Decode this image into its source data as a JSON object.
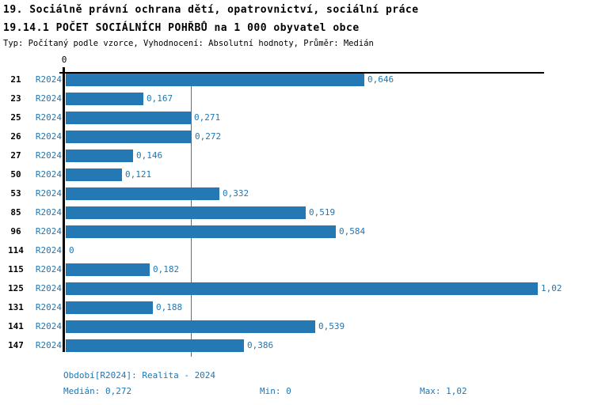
{
  "header": {
    "title_line1": "19. Sociálně právní ochrana dětí, opatrovnictví, sociální práce",
    "title_line2": "19.14.1 POČET SOCIÁLNÍCH POHŘBŮ na 1 000 obyvatel obce",
    "subtitle": "Typ: Počítaný podle vzorce, Vyhodnocení: Absolutní hodnoty, Průměr: Medián"
  },
  "chart_data": {
    "type": "bar",
    "orientation": "horizontal",
    "title": "19.14.1 POČET SOCIÁLNÍCH POHŘBŮ na 1 000 obyvatel obce",
    "categories": [
      "21",
      "23",
      "25",
      "26",
      "27",
      "50",
      "53",
      "85",
      "96",
      "114",
      "115",
      "125",
      "131",
      "141",
      "147"
    ],
    "series": [
      {
        "name": "R2024",
        "values": [
          0.646,
          0.167,
          0.271,
          0.272,
          0.146,
          0.121,
          0.332,
          0.519,
          0.584,
          0,
          0.182,
          1.02,
          0.188,
          0.539,
          0.386
        ],
        "value_labels": [
          "0,646",
          "0,167",
          "0,271",
          "0,272",
          "0,146",
          "0,121",
          "0,332",
          "0,519",
          "0,584",
          "0",
          "0,182",
          "1,02",
          "0,188",
          "0,539",
          "0,386"
        ]
      }
    ],
    "xlim": [
      0,
      1.04
    ],
    "x_tick_labels": [
      "0"
    ],
    "zero_tick_label": "0",
    "median_reference_line": 0.272,
    "grid": false,
    "legend_position": "none",
    "bar_color": "#2478b4",
    "value_label_color": "#1f77b4",
    "median_line_color": "#2e7fb8"
  },
  "footer": {
    "period": "Období[R2024]: Realita - 2024",
    "median": "Medián: 0,272",
    "min": "Min: 0",
    "max": "Max: 1,02"
  }
}
